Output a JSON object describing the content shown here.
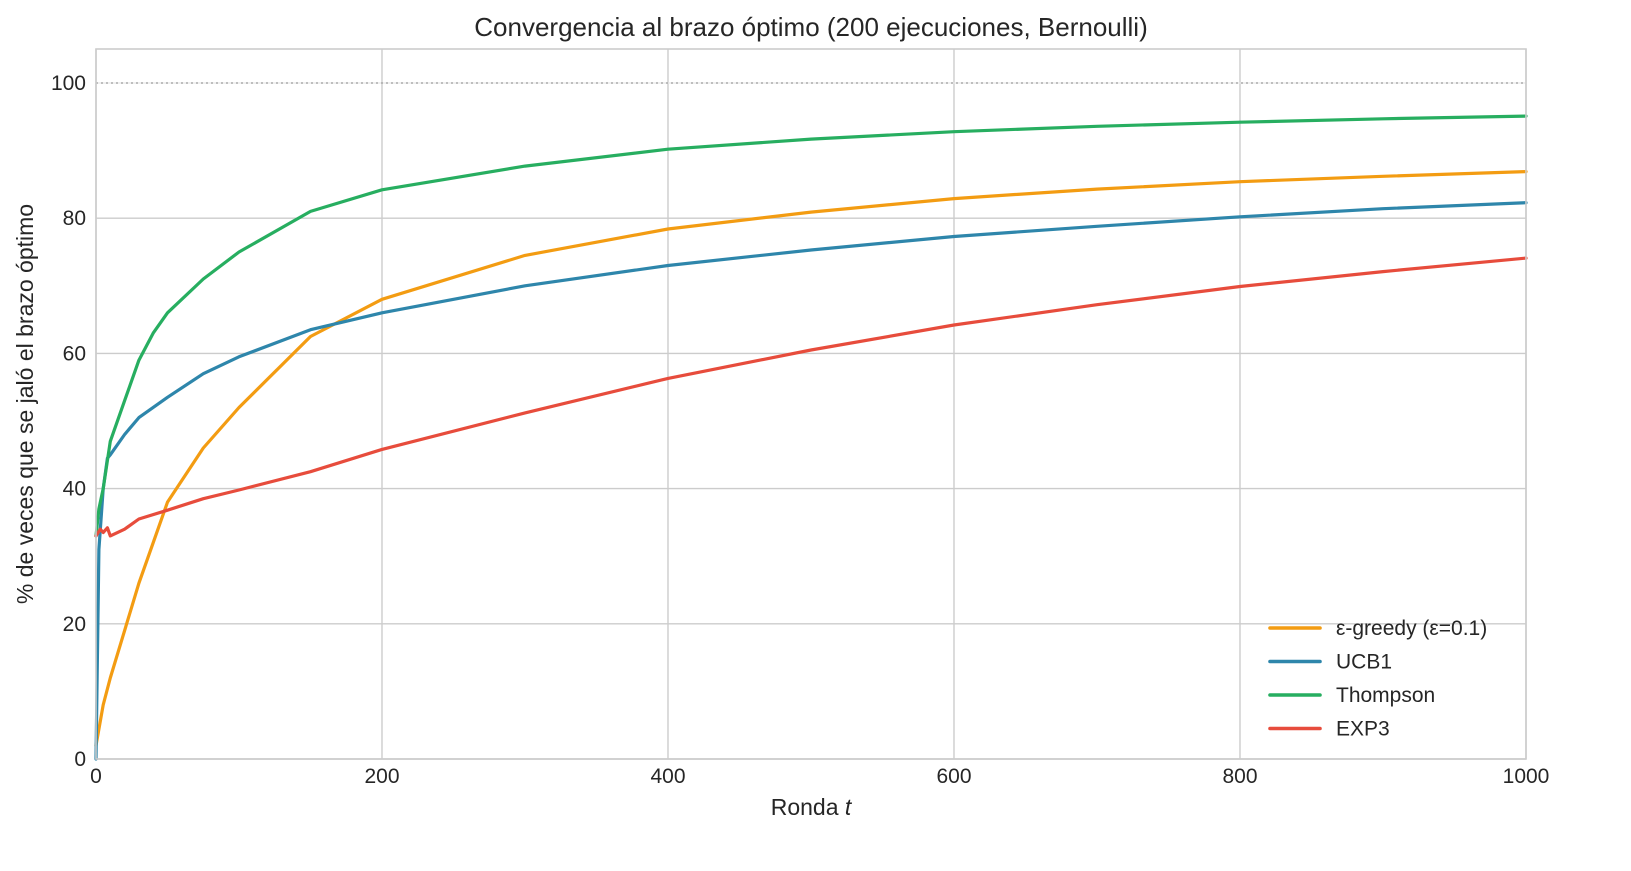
{
  "chart_data": {
    "type": "line",
    "title": "Convergencia al brazo óptimo (200 ejecuciones, Bernoulli)",
    "xlabel": "Ronda",
    "xlabel_var": "t",
    "ylabel": "% de veces que se jaló el brazo óptimo",
    "xlim": [
      0,
      1000
    ],
    "ylim": [
      0,
      105
    ],
    "xticks": [
      0,
      200,
      400,
      600,
      800,
      1000
    ],
    "yticks": [
      0,
      20,
      40,
      60,
      80,
      100
    ],
    "grid": true,
    "legend_position": "lower right",
    "reference_line": {
      "y": 100,
      "style": "dotted",
      "color": "#aaaaaa"
    },
    "series": [
      {
        "name": "ε-greedy (ε=0.1)",
        "color": "#f39c12",
        "x": [
          0,
          5,
          10,
          20,
          30,
          40,
          50,
          75,
          100,
          150,
          200,
          300,
          400,
          500,
          600,
          700,
          800,
          900,
          1000
        ],
        "values": [
          2,
          8,
          12,
          19,
          26,
          32,
          38,
          46,
          52,
          62.5,
          68,
          74.5,
          78.4,
          80.9,
          82.9,
          84.3,
          85.4,
          86.2,
          86.9
        ]
      },
      {
        "name": "UCB1",
        "color": "#2e86ab",
        "x": [
          0,
          2,
          5,
          8,
          10,
          20,
          30,
          50,
          75,
          100,
          150,
          200,
          300,
          400,
          500,
          600,
          700,
          800,
          900,
          1000
        ],
        "values": [
          0,
          31,
          40,
          44.5,
          45,
          48,
          50.5,
          53.5,
          57,
          59.5,
          63.5,
          66,
          70,
          73,
          75.3,
          77.3,
          78.8,
          80.2,
          81.4,
          82.3
        ]
      },
      {
        "name": "Thompson",
        "color": "#27ae60",
        "x": [
          0,
          2,
          5,
          10,
          20,
          30,
          40,
          50,
          75,
          100,
          150,
          200,
          300,
          400,
          500,
          600,
          700,
          800,
          900,
          1000
        ],
        "values": [
          33,
          37,
          40,
          47,
          53,
          59,
          63,
          66,
          71,
          75,
          81,
          84.2,
          87.7,
          90.2,
          91.7,
          92.8,
          93.6,
          94.2,
          94.7,
          95.1
        ]
      },
      {
        "name": "EXP3",
        "color": "#e74c3c",
        "x": [
          0,
          3,
          5,
          8,
          10,
          20,
          30,
          50,
          75,
          100,
          150,
          200,
          300,
          400,
          500,
          600,
          700,
          800,
          900,
          1000
        ],
        "values": [
          33,
          34,
          33.5,
          34.2,
          33,
          34,
          35.5,
          36.8,
          38.5,
          39.8,
          42.5,
          45.8,
          51.2,
          56.3,
          60.5,
          64.2,
          67.2,
          69.9,
          72.1,
          74.1
        ]
      }
    ]
  }
}
